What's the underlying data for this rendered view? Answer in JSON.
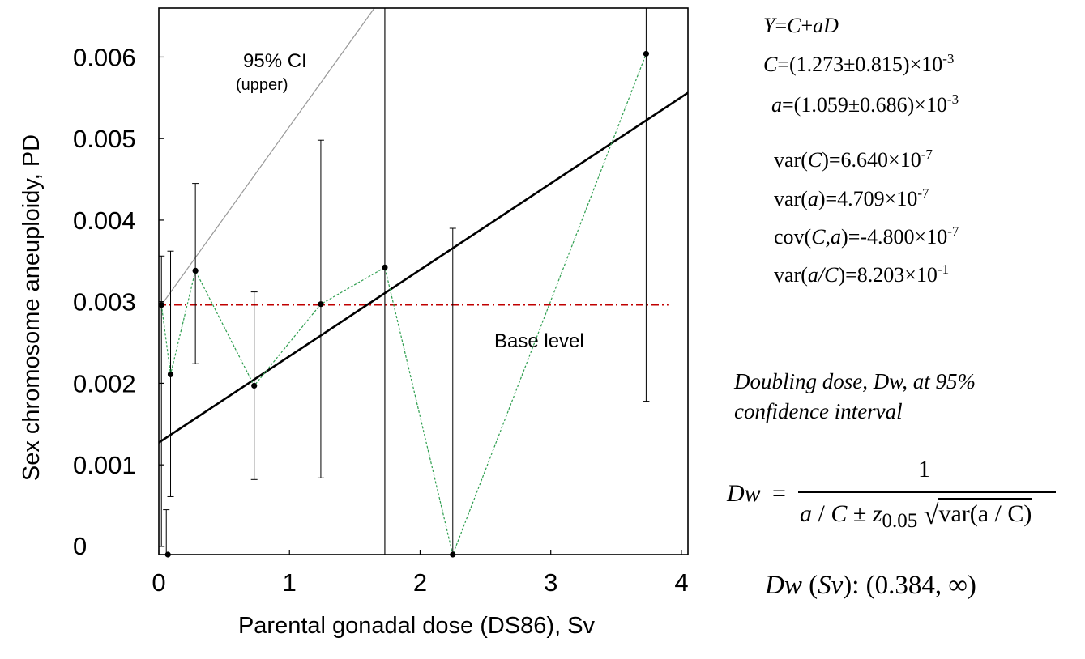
{
  "chart_data": {
    "type": "scatter",
    "xlabel": "Parental gonadal dose (DS86), Sv",
    "ylabel": "Sex chromosome aneuploidy, PD",
    "x_ticks": [
      "0",
      "1",
      "2",
      "3",
      "4"
    ],
    "y_ticks": [
      "0",
      "0.001",
      "0.002",
      "0.003",
      "0.004",
      "0.005",
      "0.006"
    ],
    "xlim": [
      0,
      4.05
    ],
    "ylim": [
      -0.0001,
      0.0066
    ],
    "grid": false,
    "series": [
      {
        "line_style": "dotted-green",
        "color": "#2e9e4f",
        "x": [
          0.02,
          0.09,
          0.28,
          0.73,
          1.24,
          1.73,
          2.25,
          3.73
        ],
        "y": [
          0.00296,
          0.00211,
          0.00338,
          0.00197,
          0.00297,
          0.00342,
          -0.0001,
          0.00604
        ],
        "err_lo": [
          0.0,
          0.00061,
          0.00224,
          0.00082,
          0.00084,
          -0.0001,
          -0.0001,
          0.00178
        ],
        "err_hi": [
          0.00356,
          0.00362,
          0.00445,
          0.00312,
          0.00498,
          0.0066,
          0.0039,
          0.0066
        ]
      }
    ],
    "baseline_point": {
      "x": 0.02,
      "y": -0.0001,
      "err_hi": 0.00045
    },
    "fit_line": {
      "intercept": 0.001273,
      "slope": 0.001059,
      "x_end": 4.05,
      "color": "#000000"
    },
    "ci_upper_line": {
      "x": [
        0.02,
        1.65
      ],
      "y": [
        0.00296,
        0.0066
      ],
      "color": "#999999",
      "label": "95% CI",
      "sublabel": "(upper)"
    },
    "base_level": {
      "y": 0.00296,
      "x_end": 3.9,
      "label": "Base level",
      "color": "#c00000"
    },
    "vertical_line_x": 1.73
  },
  "equations": {
    "model_lhs": "Y",
    "model_eq": "=",
    "model_C": "C",
    "model_plus": "+",
    "model_aD": "aD",
    "c_label": "C",
    "c_value": "=(1.273±0.815)×10",
    "c_exp": "-3",
    "a_label": "a",
    "a_value": "=(1.059±0.686)×10",
    "a_exp": "-3",
    "varC_pre": "var(",
    "varC_var": "C",
    "varC_post": ")=6.640×10",
    "varC_exp": "-7",
    "vara_pre": "var(",
    "vara_var": "a",
    "vara_post": ")=4.709×10",
    "vara_exp": "-7",
    "cov_pre": "cov(",
    "cov_var": "C,a",
    "cov_post": ")=-4.800×10",
    "cov_exp": "-7",
    "varaC_pre": "var(",
    "varaC_var": "a/C",
    "varaC_post": ")=8.203×10",
    "varaC_exp": "-1"
  },
  "doubling": {
    "line1": "Doubling dose, Dw,  at 95%",
    "line2": "confidence interval",
    "dw": "Dw",
    "eq": "=",
    "numerator": "1",
    "den_a": "a",
    "den_slash": " / ",
    "den_C": "C",
    "den_pm": " ± ",
    "den_z": "z",
    "den_zsub": "0.05",
    "den_sqrt_content": "var(a / C)",
    "result_dw": "Dw",
    "result_unit": "Sv",
    "result_value": ": (0.384, ∞)"
  }
}
